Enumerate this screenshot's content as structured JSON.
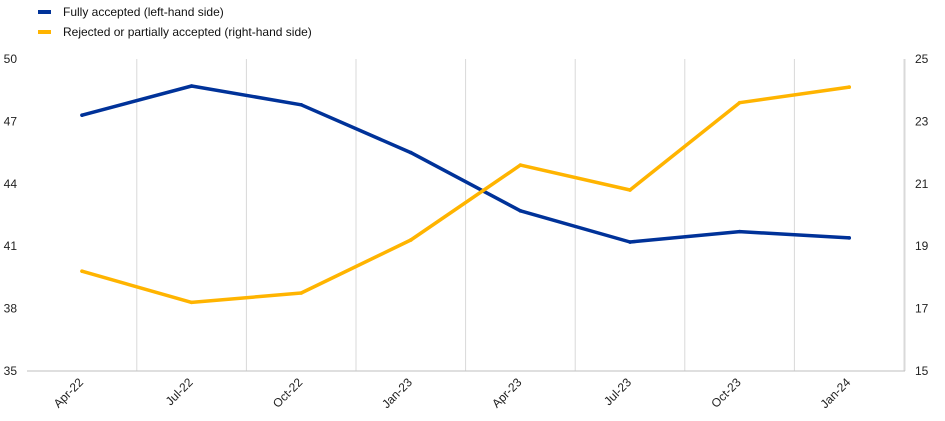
{
  "chart_data": {
    "type": "line",
    "categories": [
      "Apr-22",
      "Jul-22",
      "Oct-22",
      "Jan-23",
      "Apr-23",
      "Jul-23",
      "Oct-23",
      "Jan-24"
    ],
    "series": [
      {
        "name": "Fully accepted (left-hand side)",
        "axis": "left",
        "color": "#003299",
        "values": [
          47.3,
          48.7,
          47.8,
          45.5,
          42.7,
          41.2,
          41.7,
          41.4
        ]
      },
      {
        "name": "Rejected or partially accepted (right-hand side)",
        "axis": "right",
        "color": "#FFB400",
        "values": [
          18.2,
          17.2,
          17.5,
          19.2,
          21.6,
          20.8,
          23.6,
          24.1
        ]
      }
    ],
    "y_left": {
      "ylim": [
        35,
        50
      ],
      "ticks": [
        "35",
        "38",
        "41",
        "44",
        "47",
        "50"
      ]
    },
    "y_right": {
      "ylim": [
        15,
        25
      ],
      "ticks": [
        "15",
        "17",
        "19",
        "21",
        "23",
        "25"
      ]
    },
    "grid": "vertical",
    "legend_position": "top-left"
  }
}
